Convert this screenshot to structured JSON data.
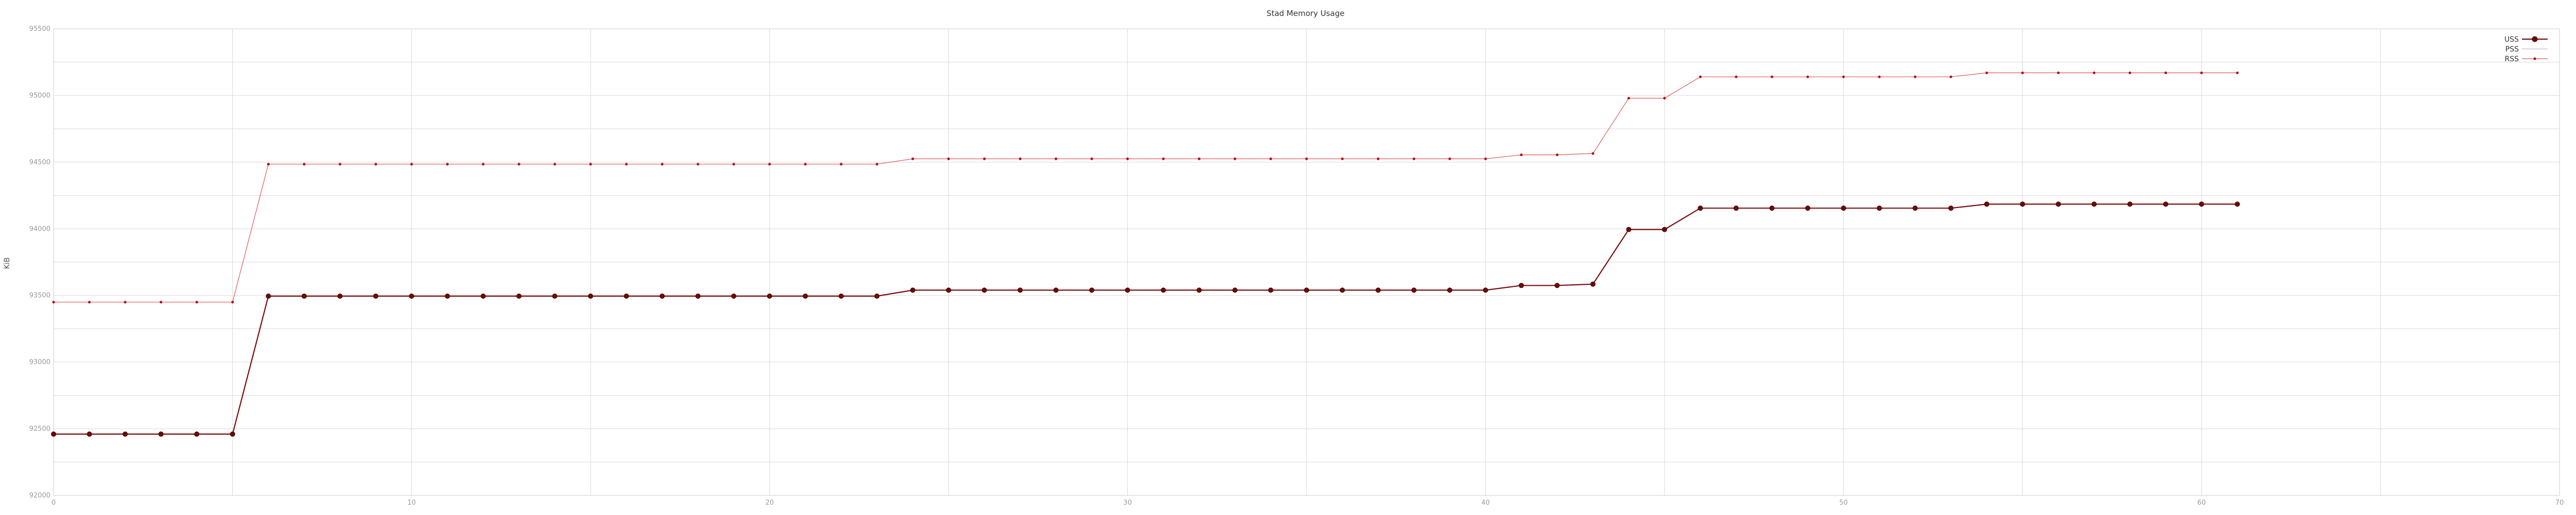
{
  "chart_data": {
    "type": "line",
    "title": "Stad Memory Usage",
    "xlabel": "",
    "ylabel": "KiB",
    "xlim": [
      0,
      70
    ],
    "ylim": [
      92000,
      95500
    ],
    "x_ticks": [
      0,
      10,
      20,
      30,
      40,
      50,
      60,
      70
    ],
    "y_ticks": [
      92000,
      92500,
      93000,
      93500,
      94000,
      94500,
      95000,
      95500
    ],
    "grid": true,
    "legend_position": "top-right",
    "series": [
      {
        "name": "USS",
        "color": "#7a0b0b",
        "marker": "circle-large",
        "x": [
          0,
          1,
          2,
          3,
          4,
          5,
          6,
          7,
          8,
          9,
          10,
          11,
          12,
          13,
          14,
          15,
          16,
          17,
          18,
          19,
          20,
          21,
          22,
          23,
          24,
          25,
          26,
          27,
          28,
          29,
          30,
          31,
          32,
          33,
          34,
          35,
          36,
          37,
          38,
          39,
          40,
          41,
          42,
          43,
          44,
          45,
          46,
          47,
          48,
          49,
          50,
          51,
          52,
          53,
          54,
          55,
          56,
          57,
          58,
          59,
          60,
          61
        ],
        "values": [
          92460,
          92460,
          92460,
          92460,
          92460,
          92460,
          93495,
          93495,
          93495,
          93495,
          93495,
          93495,
          93495,
          93495,
          93495,
          93495,
          93495,
          93495,
          93495,
          93495,
          93495,
          93495,
          93495,
          93495,
          93540,
          93540,
          93540,
          93540,
          93540,
          93540,
          93540,
          93540,
          93540,
          93540,
          93540,
          93540,
          93540,
          93540,
          93540,
          93540,
          93540,
          93575,
          93575,
          93585,
          93995,
          93995,
          94155,
          94155,
          94155,
          94155,
          94155,
          94155,
          94155,
          94155,
          94185,
          94185,
          94185,
          94185,
          94185,
          94185,
          94185,
          94185
        ]
      },
      {
        "name": "PSS",
        "color": "#b9bccf",
        "marker": "none",
        "x": [
          0,
          1,
          2,
          3,
          4,
          5,
          6,
          7,
          8,
          9,
          10,
          11,
          12,
          13,
          14,
          15,
          16,
          17,
          18,
          19,
          20,
          21,
          22,
          23,
          24,
          25,
          26,
          27,
          28,
          29,
          30,
          31,
          32,
          33,
          34,
          35,
          36,
          37,
          38,
          39,
          40,
          41,
          42,
          43,
          44,
          45,
          46,
          47,
          48,
          49,
          50,
          51,
          52,
          53,
          54,
          55,
          56,
          57,
          58,
          59,
          60,
          61
        ],
        "values": [
          92460,
          92460,
          92460,
          92460,
          92460,
          92460,
          93495,
          93495,
          93495,
          93495,
          93495,
          93495,
          93495,
          93495,
          93495,
          93495,
          93495,
          93495,
          93495,
          93495,
          93495,
          93495,
          93495,
          93495,
          93540,
          93540,
          93540,
          93540,
          93540,
          93540,
          93540,
          93540,
          93540,
          93540,
          93540,
          93540,
          93540,
          93540,
          93540,
          93540,
          93540,
          93575,
          93575,
          93585,
          93995,
          93995,
          94155,
          94155,
          94155,
          94155,
          94155,
          94155,
          94155,
          94155,
          94185,
          94185,
          94185,
          94185,
          94185,
          94185,
          94185,
          94185
        ]
      },
      {
        "name": "RSS",
        "color": "#d85a5a",
        "marker": "circle-small",
        "x": [
          0,
          1,
          2,
          3,
          4,
          5,
          6,
          7,
          8,
          9,
          10,
          11,
          12,
          13,
          14,
          15,
          16,
          17,
          18,
          19,
          20,
          21,
          22,
          23,
          24,
          25,
          26,
          27,
          28,
          29,
          30,
          31,
          32,
          33,
          34,
          35,
          36,
          37,
          38,
          39,
          40,
          41,
          42,
          43,
          44,
          45,
          46,
          47,
          48,
          49,
          50,
          51,
          52,
          53,
          54,
          55,
          56,
          57,
          58,
          59,
          60,
          61
        ],
        "values": [
          93450,
          93450,
          93450,
          93450,
          93450,
          93450,
          94485,
          94485,
          94485,
          94485,
          94485,
          94485,
          94485,
          94485,
          94485,
          94485,
          94485,
          94485,
          94485,
          94485,
          94485,
          94485,
          94485,
          94485,
          94525,
          94525,
          94525,
          94525,
          94525,
          94525,
          94525,
          94525,
          94525,
          94525,
          94525,
          94525,
          94525,
          94525,
          94525,
          94525,
          94525,
          94555,
          94555,
          94565,
          94980,
          94980,
          95140,
          95140,
          95140,
          95140,
          95140,
          95140,
          95140,
          95140,
          95170,
          95170,
          95170,
          95170,
          95170,
          95170,
          95170,
          95170
        ]
      }
    ]
  }
}
